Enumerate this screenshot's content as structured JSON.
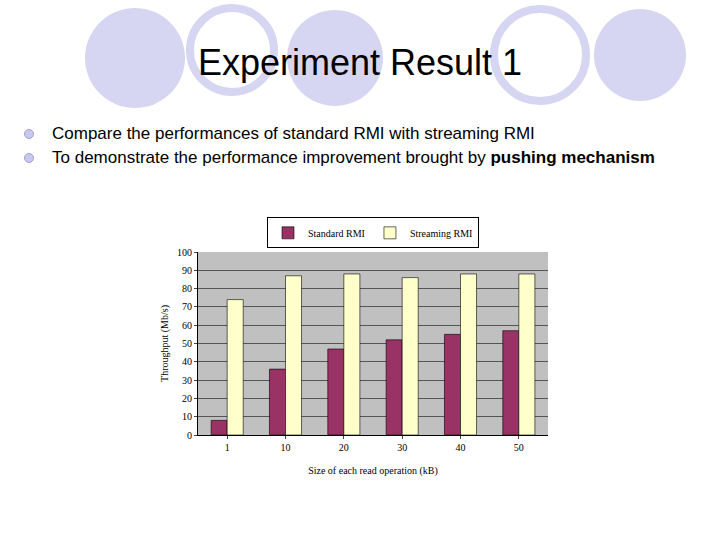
{
  "slide": {
    "title": "Experiment Result 1",
    "bullets": [
      [
        {
          "text": "Compare the performances of standard RMI with streaming RMI",
          "bold": false
        }
      ],
      [
        {
          "text": "To demonstrate the performance improvement brought by ",
          "bold": false
        },
        {
          "text": "pushing mechanism",
          "bold": true
        }
      ]
    ]
  },
  "chart_data": {
    "type": "bar",
    "x_label": "Size of each read operation (kB)",
    "y_label": "Throughput (Mb/s)",
    "categories": [
      "1",
      "10",
      "20",
      "30",
      "40",
      "50"
    ],
    "series": [
      {
        "name": "Standard RMI",
        "color": "#993366",
        "values": [
          8,
          36,
          47,
          52,
          55,
          57
        ]
      },
      {
        "name": "Streaming RMI",
        "color": "#ffffcc",
        "values": [
          74,
          87,
          88,
          86,
          88,
          88
        ]
      }
    ],
    "ylim": [
      0,
      100
    ],
    "yticks": [
      0,
      10,
      20,
      30,
      40,
      50,
      60,
      70,
      80,
      90,
      100
    ],
    "grid": true,
    "legend": "top"
  }
}
